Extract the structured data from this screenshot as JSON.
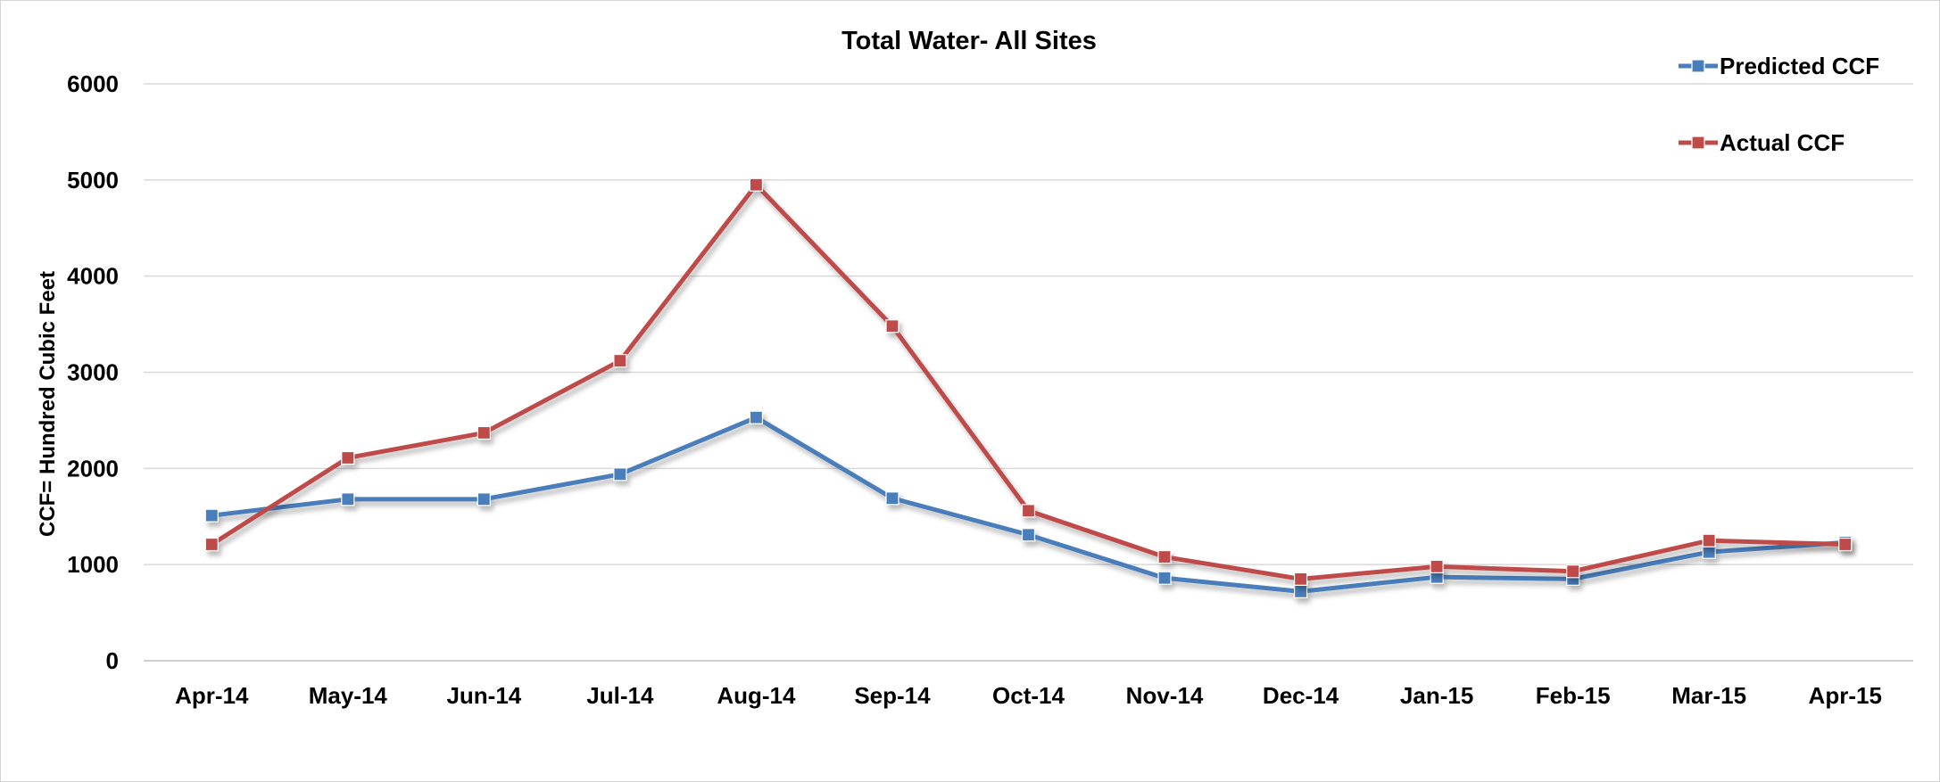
{
  "chart_data": {
    "type": "line",
    "title": "Total Water- All Sites",
    "xlabel": "",
    "ylabel": "CCF= Hundred Cubic Feet",
    "ylim": [
      0,
      6000
    ],
    "yticks": [
      0,
      1000,
      2000,
      3000,
      4000,
      5000,
      6000
    ],
    "grid": true,
    "legend": "top-right",
    "categories": [
      "Apr-14",
      "May-14",
      "Jun-14",
      "Jul-14",
      "Aug-14",
      "Sep-14",
      "Oct-14",
      "Nov-14",
      "Dec-14",
      "Jan-15",
      "Feb-15",
      "Mar-15",
      "Apr-15"
    ],
    "series": [
      {
        "name": "Predicted CCF",
        "color": "#4a7ebb",
        "values": [
          1510,
          1680,
          1680,
          1940,
          2530,
          1690,
          1310,
          860,
          720,
          870,
          850,
          1130,
          1230
        ]
      },
      {
        "name": "Actual CCF",
        "color": "#be4b48",
        "values": [
          1210,
          2110,
          2370,
          3120,
          4950,
          3480,
          1560,
          1080,
          850,
          980,
          930,
          1250,
          1210
        ]
      }
    ]
  }
}
